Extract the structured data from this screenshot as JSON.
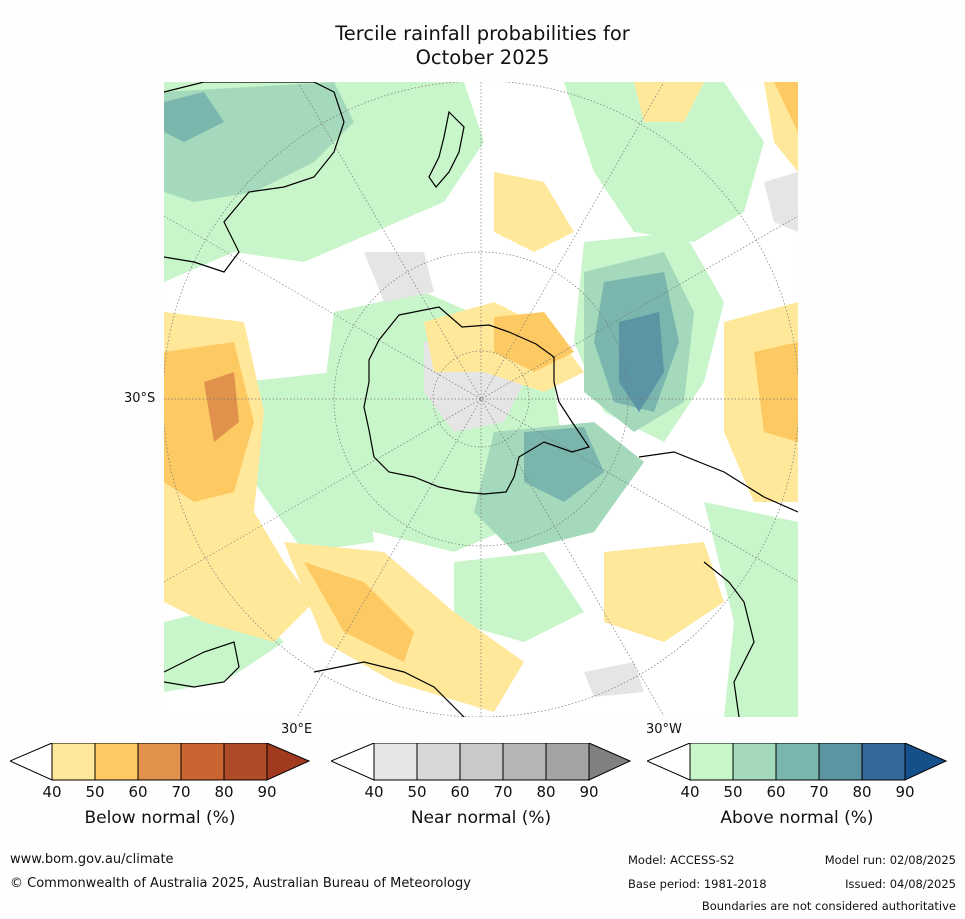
{
  "title": {
    "line1": "Tercile rainfall probabilities for",
    "line2": "October 2025"
  },
  "map": {
    "projection": "south-polar-stereographic",
    "graticule_labels": {
      "lat_left": "30°S",
      "lon_bottom_left": "30°E",
      "lon_bottom_right": "30°W"
    },
    "colors": {
      "land_outline": "#000000",
      "graticule": "#777777"
    }
  },
  "legend": {
    "below": {
      "title": "Below normal (%)",
      "ticks": [
        "40",
        "50",
        "60",
        "70",
        "80",
        "90"
      ],
      "colors": [
        "#ffffff",
        "#ffe89a",
        "#fdc962",
        "#e0914b",
        "#ca6431",
        "#b04b27",
        "#a23a1f"
      ]
    },
    "near": {
      "title": "Near normal (%)",
      "ticks": [
        "40",
        "50",
        "60",
        "70",
        "80",
        "90"
      ],
      "colors": [
        "#ffffff",
        "#e5e5e5",
        "#d8d8d8",
        "#c9c9c9",
        "#b5b5b5",
        "#a3a3a3",
        "#808080"
      ]
    },
    "above": {
      "title": "Above normal (%)",
      "ticks": [
        "40",
        "50",
        "60",
        "70",
        "80",
        "90"
      ],
      "colors": [
        "#ffffff",
        "#c8f5ca",
        "#a4d9bc",
        "#7ab6ae",
        "#5b94a2",
        "#346898",
        "#16508b"
      ]
    }
  },
  "footer": {
    "url": "www.bom.gov.au/climate",
    "copyright": "© Commonwealth of Australia 2025, Australian Bureau of Meteorology",
    "model": "Model: ACCESS-S2",
    "base_period": "Base period: 1981-2018",
    "model_run": "Model run: 02/08/2025",
    "issued": "Issued: 04/08/2025",
    "disclaimer": "Boundaries are not considered authoritative"
  }
}
